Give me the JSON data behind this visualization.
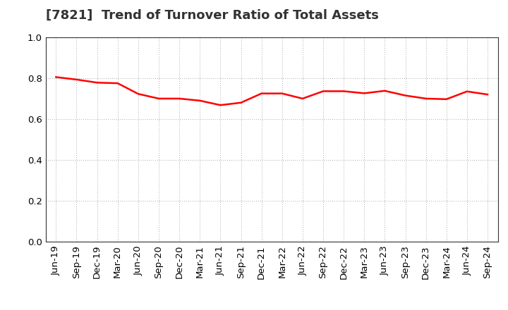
{
  "title": "[7821]  Trend of Turnover Ratio of Total Assets",
  "x_labels": [
    "Jun-19",
    "Sep-19",
    "Dec-19",
    "Mar-20",
    "Jun-20",
    "Sep-20",
    "Dec-20",
    "Mar-21",
    "Jun-21",
    "Sep-21",
    "Dec-21",
    "Mar-22",
    "Jun-22",
    "Sep-22",
    "Dec-22",
    "Mar-23",
    "Jun-23",
    "Sep-23",
    "Dec-23",
    "Mar-24",
    "Jun-24",
    "Sep-24"
  ],
  "y_values": [
    0.805,
    0.793,
    0.778,
    0.775,
    0.723,
    0.7,
    0.7,
    0.69,
    0.668,
    0.68,
    0.725,
    0.725,
    0.7,
    0.736,
    0.736,
    0.726,
    0.738,
    0.715,
    0.7,
    0.697,
    0.735,
    0.72
  ],
  "line_color": "#ff0000",
  "line_width": 1.8,
  "background_color": "#ffffff",
  "grid_color": "#aaaaaa",
  "ylim": [
    0.0,
    1.0
  ],
  "yticks": [
    0.0,
    0.2,
    0.4,
    0.6,
    0.8,
    1.0
  ],
  "title_fontsize": 13,
  "title_color": "#333333",
  "tick_fontsize": 9.5
}
